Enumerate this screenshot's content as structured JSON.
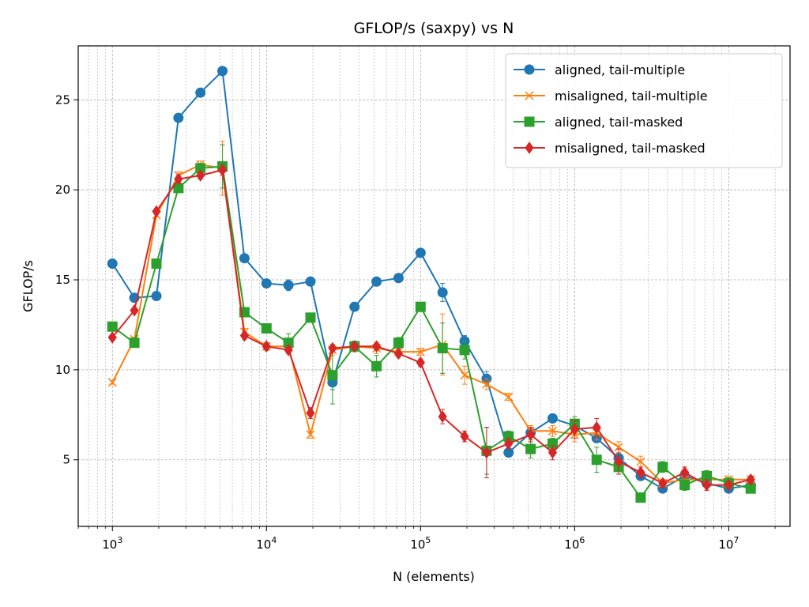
{
  "chart_data": {
    "type": "line",
    "title": "GFLOP/s (saxpy) vs N",
    "xlabel": "N (elements)",
    "ylabel": "GFLOP/s",
    "xscale": "log",
    "xlim": [
      600,
      25000000
    ],
    "ylim": [
      1.3,
      28
    ],
    "grid": true,
    "legend_position": "top-right",
    "x_ticks": [
      {
        "value": 1000,
        "base": "10",
        "exp": "3"
      },
      {
        "value": 10000,
        "base": "10",
        "exp": "4"
      },
      {
        "value": 100000,
        "base": "10",
        "exp": "5"
      },
      {
        "value": 1000000,
        "base": "10",
        "exp": "6"
      },
      {
        "value": 10000000,
        "base": "10",
        "exp": "7"
      }
    ],
    "y_ticks": [
      {
        "value": 5,
        "label": "5"
      },
      {
        "value": 10,
        "label": "10"
      },
      {
        "value": 15,
        "label": "15"
      },
      {
        "value": 20,
        "label": "20"
      },
      {
        "value": 25,
        "label": "25"
      }
    ],
    "x": [
      1000,
      1389,
      1931,
      2683,
      3728,
      5179,
      7197,
      10000,
      13895,
      19307,
      26827,
      37276,
      51795,
      71969,
      100000,
      138950,
      193070,
      268270,
      372760,
      517950,
      719690,
      1000000,
      1389500,
      1930700,
      2682700,
      3727600,
      5179500,
      7196900,
      10000000,
      13895000
    ],
    "series": [
      {
        "name": "aligned, tail-multiple",
        "color": "#1f77b4",
        "marker": "circle",
        "values": [
          15.9,
          14.0,
          14.1,
          24.0,
          25.4,
          26.6,
          16.2,
          14.8,
          14.7,
          14.9,
          9.3,
          13.5,
          14.9,
          15.1,
          16.5,
          14.3,
          11.6,
          9.5,
          5.4,
          6.5,
          7.3,
          6.9,
          6.2,
          5.1,
          4.1,
          3.4,
          4.1,
          3.7,
          3.4,
          3.6
        ],
        "errors": [
          0.1,
          0.1,
          0.1,
          0.1,
          0.1,
          0.1,
          0.1,
          0.1,
          0.3,
          0.1,
          0.4,
          0.1,
          0.1,
          0.1,
          0.1,
          0.5,
          0.3,
          0.4,
          0.2,
          0.2,
          0.1,
          0.2,
          0.2,
          0.2,
          0.2,
          0.1,
          0.1,
          0.1,
          0.1,
          0.1
        ]
      },
      {
        "name": "misaligned, tail-multiple",
        "color": "#ff7f0e",
        "marker": "x",
        "values": [
          9.3,
          11.7,
          18.6,
          20.8,
          21.4,
          21.2,
          12.1,
          11.3,
          11.3,
          6.4,
          11.1,
          11.3,
          11.2,
          11.0,
          11.0,
          11.4,
          9.7,
          9.2,
          8.5,
          6.6,
          6.6,
          6.4,
          6.5,
          5.7,
          4.9,
          3.7,
          3.9,
          3.9,
          3.9,
          3.9
        ],
        "errors": [
          0.1,
          0.1,
          0.1,
          0.2,
          0.2,
          1.5,
          0.2,
          0.2,
          0.2,
          0.2,
          0.3,
          0.2,
          0.3,
          0.2,
          0.2,
          1.7,
          0.5,
          0.3,
          0.2,
          0.3,
          0.3,
          0.4,
          0.4,
          0.3,
          0.3,
          0.2,
          0.2,
          0.2,
          0.2,
          0.2
        ]
      },
      {
        "name": "aligned, tail-masked",
        "color": "#2ca02c",
        "marker": "square",
        "values": [
          12.4,
          11.5,
          15.9,
          20.1,
          21.2,
          21.3,
          13.2,
          12.3,
          11.5,
          12.9,
          9.7,
          11.3,
          10.2,
          11.5,
          13.5,
          11.2,
          11.1,
          5.5,
          6.3,
          5.6,
          5.9,
          7.0,
          5.0,
          4.6,
          2.9,
          4.6,
          3.6,
          4.1,
          3.7,
          3.4
        ],
        "errors": [
          0.1,
          0.1,
          0.1,
          0.2,
          0.2,
          1.2,
          0.2,
          0.2,
          0.5,
          0.2,
          1.6,
          0.3,
          0.6,
          0.3,
          0.2,
          1.4,
          0.5,
          1.3,
          0.3,
          0.5,
          0.3,
          0.4,
          0.7,
          0.4,
          0.2,
          0.3,
          0.3,
          0.3,
          0.3,
          0.2
        ]
      },
      {
        "name": "misaligned, tail-masked",
        "color": "#d62728",
        "marker": "diamond",
        "values": [
          11.8,
          13.3,
          18.8,
          20.6,
          20.8,
          21.1,
          11.9,
          11.3,
          11.1,
          7.6,
          11.2,
          11.3,
          11.3,
          10.9,
          10.4,
          7.4,
          6.3,
          5.4,
          5.9,
          6.4,
          5.4,
          6.7,
          6.8,
          4.9,
          4.3,
          3.7,
          4.3,
          3.6,
          3.6,
          3.9
        ],
        "errors": [
          0.1,
          0.1,
          0.1,
          0.2,
          0.2,
          0.3,
          0.2,
          0.2,
          0.2,
          0.3,
          0.2,
          0.2,
          0.2,
          0.2,
          0.2,
          0.4,
          0.3,
          1.4,
          0.3,
          0.4,
          0.4,
          0.5,
          0.5,
          0.7,
          0.3,
          0.2,
          0.3,
          0.3,
          0.2,
          0.2
        ]
      }
    ]
  }
}
